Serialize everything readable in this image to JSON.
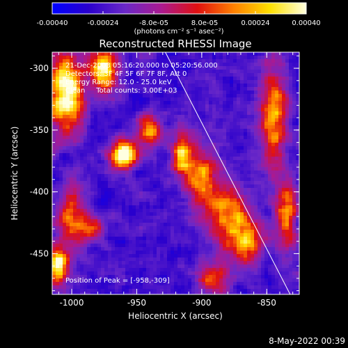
{
  "chart_data": {
    "type": "heatmap",
    "title": "Reconstructed RHESSI Image",
    "xlabel": "Heliocentric X (arcsec)",
    "ylabel": "Heliocentric Y (arcsec)",
    "xlim": [
      -1015,
      -825
    ],
    "ylim": [
      -483,
      -287
    ],
    "x_ticks": [
      {
        "value": -1000,
        "label": "-1000"
      },
      {
        "value": -950,
        "label": "-950"
      },
      {
        "value": -900,
        "label": "-900"
      },
      {
        "value": -850,
        "label": "-850"
      }
    ],
    "y_ticks": [
      {
        "value": -300,
        "label": "-300"
      },
      {
        "value": -350,
        "label": "-350"
      },
      {
        "value": -400,
        "label": "-400"
      },
      {
        "value": -450,
        "label": "-450"
      }
    ],
    "annotations": [
      "21-Dec-2003 05:16:20.000 to 05:20:56.000",
      "Detectors: 3F 4F 5F 6F 7F 8F, Att 0",
      "Energy Range: 12.0 - 25.0 keV",
      "Clean     Total counts: 3.00E+03"
    ],
    "peak_label": "Position of Peak = [-958,-309]",
    "peak_position": [
      -958,
      -309
    ],
    "limb_line": [
      [
        -928,
        -287
      ],
      [
        -832,
        -483
      ]
    ],
    "colorbar": {
      "range": [
        -0.0004,
        0.0004
      ],
      "unit_label": "(photons cm⁻² s⁻¹ asec⁻²)",
      "ticks": [
        {
          "value": -0.0004,
          "label": "-0.00040"
        },
        {
          "value": -0.00024,
          "label": "-0.00024"
        },
        {
          "value": -8e-05,
          "label": "-8.0e-05"
        },
        {
          "value": 8e-05,
          "label": "8.0e-05"
        },
        {
          "value": 0.00024,
          "label": "0.00024"
        },
        {
          "value": 0.0004,
          "label": "0.00040"
        }
      ],
      "colors": [
        "#0000ff",
        "#2a00cc",
        "#6a28c8",
        "#aa1a90",
        "#e01010",
        "#ff8000",
        "#ffe000",
        "#ffffe0"
      ]
    },
    "bright_regions": [
      {
        "center": [
          -1005,
          -320
        ],
        "extent": [
          14,
          30
        ],
        "level": 0.85
      },
      {
        "center": [
          -975,
          -300
        ],
        "extent": [
          10,
          18
        ],
        "level": 0.75
      },
      {
        "center": [
          -960,
          -370
        ],
        "extent": [
          10,
          10
        ],
        "level": 0.95
      },
      {
        "center": [
          -940,
          -350
        ],
        "extent": [
          8,
          12
        ],
        "level": 0.6
      },
      {
        "center": [
          -915,
          -370
        ],
        "extent": [
          8,
          18
        ],
        "level": 0.6
      },
      {
        "center": [
          -900,
          -390
        ],
        "extent": [
          12,
          25
        ],
        "level": 0.55
      },
      {
        "center": [
          -880,
          -420
        ],
        "extent": [
          14,
          25
        ],
        "level": 0.6
      },
      {
        "center": [
          -865,
          -440
        ],
        "extent": [
          12,
          18
        ],
        "level": 0.5
      },
      {
        "center": [
          -845,
          -340
        ],
        "extent": [
          10,
          40
        ],
        "level": 0.6
      },
      {
        "center": [
          -835,
          -420
        ],
        "extent": [
          8,
          25
        ],
        "level": 0.55
      },
      {
        "center": [
          -890,
          -470
        ],
        "extent": [
          12,
          12
        ],
        "level": 0.45
      },
      {
        "center": [
          -1000,
          -420
        ],
        "extent": [
          10,
          25
        ],
        "level": 0.5
      },
      {
        "center": [
          -1010,
          -460
        ],
        "extent": [
          8,
          14
        ],
        "level": 0.8
      },
      {
        "center": [
          -985,
          -430
        ],
        "extent": [
          8,
          10
        ],
        "level": 0.45
      }
    ]
  },
  "footer": {
    "timestamp": "8-May-2022 00:39"
  }
}
